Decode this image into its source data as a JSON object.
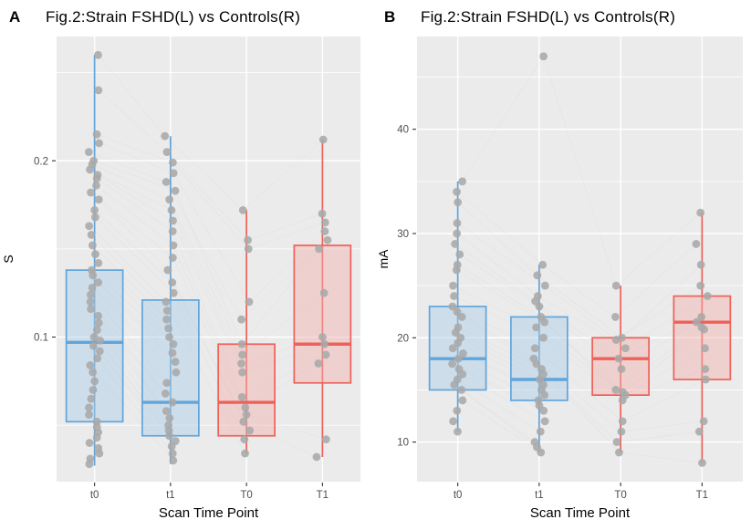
{
  "colors": {
    "panel_bg": "#EBEBEB",
    "grid": "#FFFFFF",
    "axis_text": "#4D4D4D",
    "axis_tick": "#333333",
    "title_text": "#000000",
    "point": "#A9A9A9",
    "fshd_stroke": "#60A5DC",
    "fshd_fill": "#A9CCE9",
    "control_stroke": "#EE6158",
    "control_fill": "#F2AFAC"
  },
  "chart_data": [
    {
      "tag": "A",
      "type": "boxplot",
      "title": "Fig.2:Strain FSHD(L) vs Controls(R)",
      "xlabel": "Scan Time Point",
      "ylabel": "S",
      "categories": [
        "t0",
        "t1",
        "T0",
        "T1"
      ],
      "ylim": [
        0.018,
        0.2705
      ],
      "yticks": [
        0.1,
        0.2
      ],
      "ytick_labels": [
        "0.1",
        "0.2"
      ],
      "yminor_ticks": [
        0.05,
        0.15,
        0.25
      ],
      "grid": true,
      "legend": "none",
      "boxes": [
        {
          "category": "t0",
          "group": "FSHD",
          "whisker_low": 0.027,
          "q1": 0.052,
          "median": 0.097,
          "q3": 0.138,
          "whisker_high": 0.26
        },
        {
          "category": "t1",
          "group": "FSHD",
          "whisker_low": 0.028,
          "q1": 0.044,
          "median": 0.063,
          "q3": 0.121,
          "whisker_high": 0.214
        },
        {
          "category": "T0",
          "group": "Controls",
          "whisker_low": 0.034,
          "q1": 0.044,
          "median": 0.063,
          "q3": 0.096,
          "whisker_high": 0.172
        },
        {
          "category": "T1",
          "group": "Controls",
          "whisker_low": 0.032,
          "q1": 0.074,
          "median": 0.096,
          "q3": 0.152,
          "whisker_high": 0.212
        }
      ],
      "jitter_points": {
        "t0": [
          0.26,
          0.24,
          0.215,
          0.21,
          0.205,
          0.2,
          0.198,
          0.195,
          0.192,
          0.19,
          0.186,
          0.182,
          0.178,
          0.172,
          0.168,
          0.163,
          0.158,
          0.152,
          0.147,
          0.142,
          0.138,
          0.135,
          0.131,
          0.128,
          0.124,
          0.12,
          0.116,
          0.112,
          0.108,
          0.104,
          0.1,
          0.098,
          0.095,
          0.092,
          0.088,
          0.084,
          0.08,
          0.075,
          0.07,
          0.065,
          0.06,
          0.056,
          0.052,
          0.049,
          0.046,
          0.043,
          0.04,
          0.037,
          0.034,
          0.031,
          0.028
        ],
        "t1": [
          0.214,
          0.205,
          0.199,
          0.193,
          0.188,
          0.183,
          0.178,
          0.172,
          0.166,
          0.16,
          0.152,
          0.145,
          0.138,
          0.131,
          0.125,
          0.12,
          0.115,
          0.11,
          0.105,
          0.1,
          0.096,
          0.091,
          0.086,
          0.08,
          0.074,
          0.068,
          0.063,
          0.058,
          0.054,
          0.05,
          0.047,
          0.044,
          0.041,
          0.038,
          0.034,
          0.03
        ],
        "T0": [
          0.172,
          0.155,
          0.15,
          0.12,
          0.11,
          0.096,
          0.09,
          0.085,
          0.08,
          0.066,
          0.06,
          0.056,
          0.052,
          0.047,
          0.042,
          0.034
        ],
        "T1": [
          0.212,
          0.17,
          0.165,
          0.16,
          0.155,
          0.15,
          0.125,
          0.1,
          0.096,
          0.09,
          0.085,
          0.042,
          0.032
        ]
      }
    },
    {
      "tag": "B",
      "type": "boxplot",
      "title": "Fig.2:Strain FSHD(L) vs Controls(R)",
      "xlabel": "Scan Time Point",
      "ylabel": "mA",
      "categories": [
        "t0",
        "t1",
        "T0",
        "T1"
      ],
      "ylim": [
        6.2,
        48.9
      ],
      "yticks": [
        10,
        20,
        30,
        40
      ],
      "ytick_labels": [
        "10",
        "20",
        "30",
        "40"
      ],
      "yminor_ticks": [
        15,
        25,
        35,
        45
      ],
      "grid": true,
      "legend": "none",
      "boxes": [
        {
          "category": "t0",
          "group": "FSHD",
          "whisker_low": 11,
          "q1": 15,
          "median": 18,
          "q3": 23,
          "whisker_high": 35
        },
        {
          "category": "t1",
          "group": "FSHD",
          "whisker_low": 9,
          "q1": 14,
          "median": 16,
          "q3": 22,
          "whisker_high": 27
        },
        {
          "category": "T0",
          "group": "Controls",
          "whisker_low": 9,
          "q1": 14.5,
          "median": 18,
          "q3": 20,
          "whisker_high": 25
        },
        {
          "category": "T1",
          "group": "Controls",
          "whisker_low": 8,
          "q1": 16,
          "median": 21.5,
          "q3": 24,
          "whisker_high": 32
        }
      ],
      "jitter_points": {
        "t0": [
          35,
          34,
          33,
          31,
          30,
          29,
          28,
          27,
          26.5,
          25,
          24,
          23,
          22.5,
          22,
          21,
          20.5,
          20,
          19.5,
          19,
          18.5,
          18,
          17.5,
          17,
          16.5,
          16,
          15.5,
          15,
          14,
          13,
          12,
          11
        ],
        "t1": [
          47,
          27,
          26,
          25,
          24,
          23.5,
          23,
          22,
          21.5,
          21,
          20,
          19,
          18,
          17.5,
          17,
          16.5,
          16,
          15.5,
          15,
          14.5,
          14,
          13.5,
          13,
          12,
          11,
          10,
          9.5,
          9
        ],
        "T0": [
          25,
          22,
          20,
          19.8,
          19,
          18,
          17,
          15,
          14.8,
          14.5,
          14,
          12,
          11,
          10,
          9
        ],
        "T1": [
          32,
          29,
          27,
          25,
          24,
          22,
          21.5,
          21,
          20.8,
          19,
          17,
          16,
          12,
          11,
          8
        ]
      }
    }
  ]
}
